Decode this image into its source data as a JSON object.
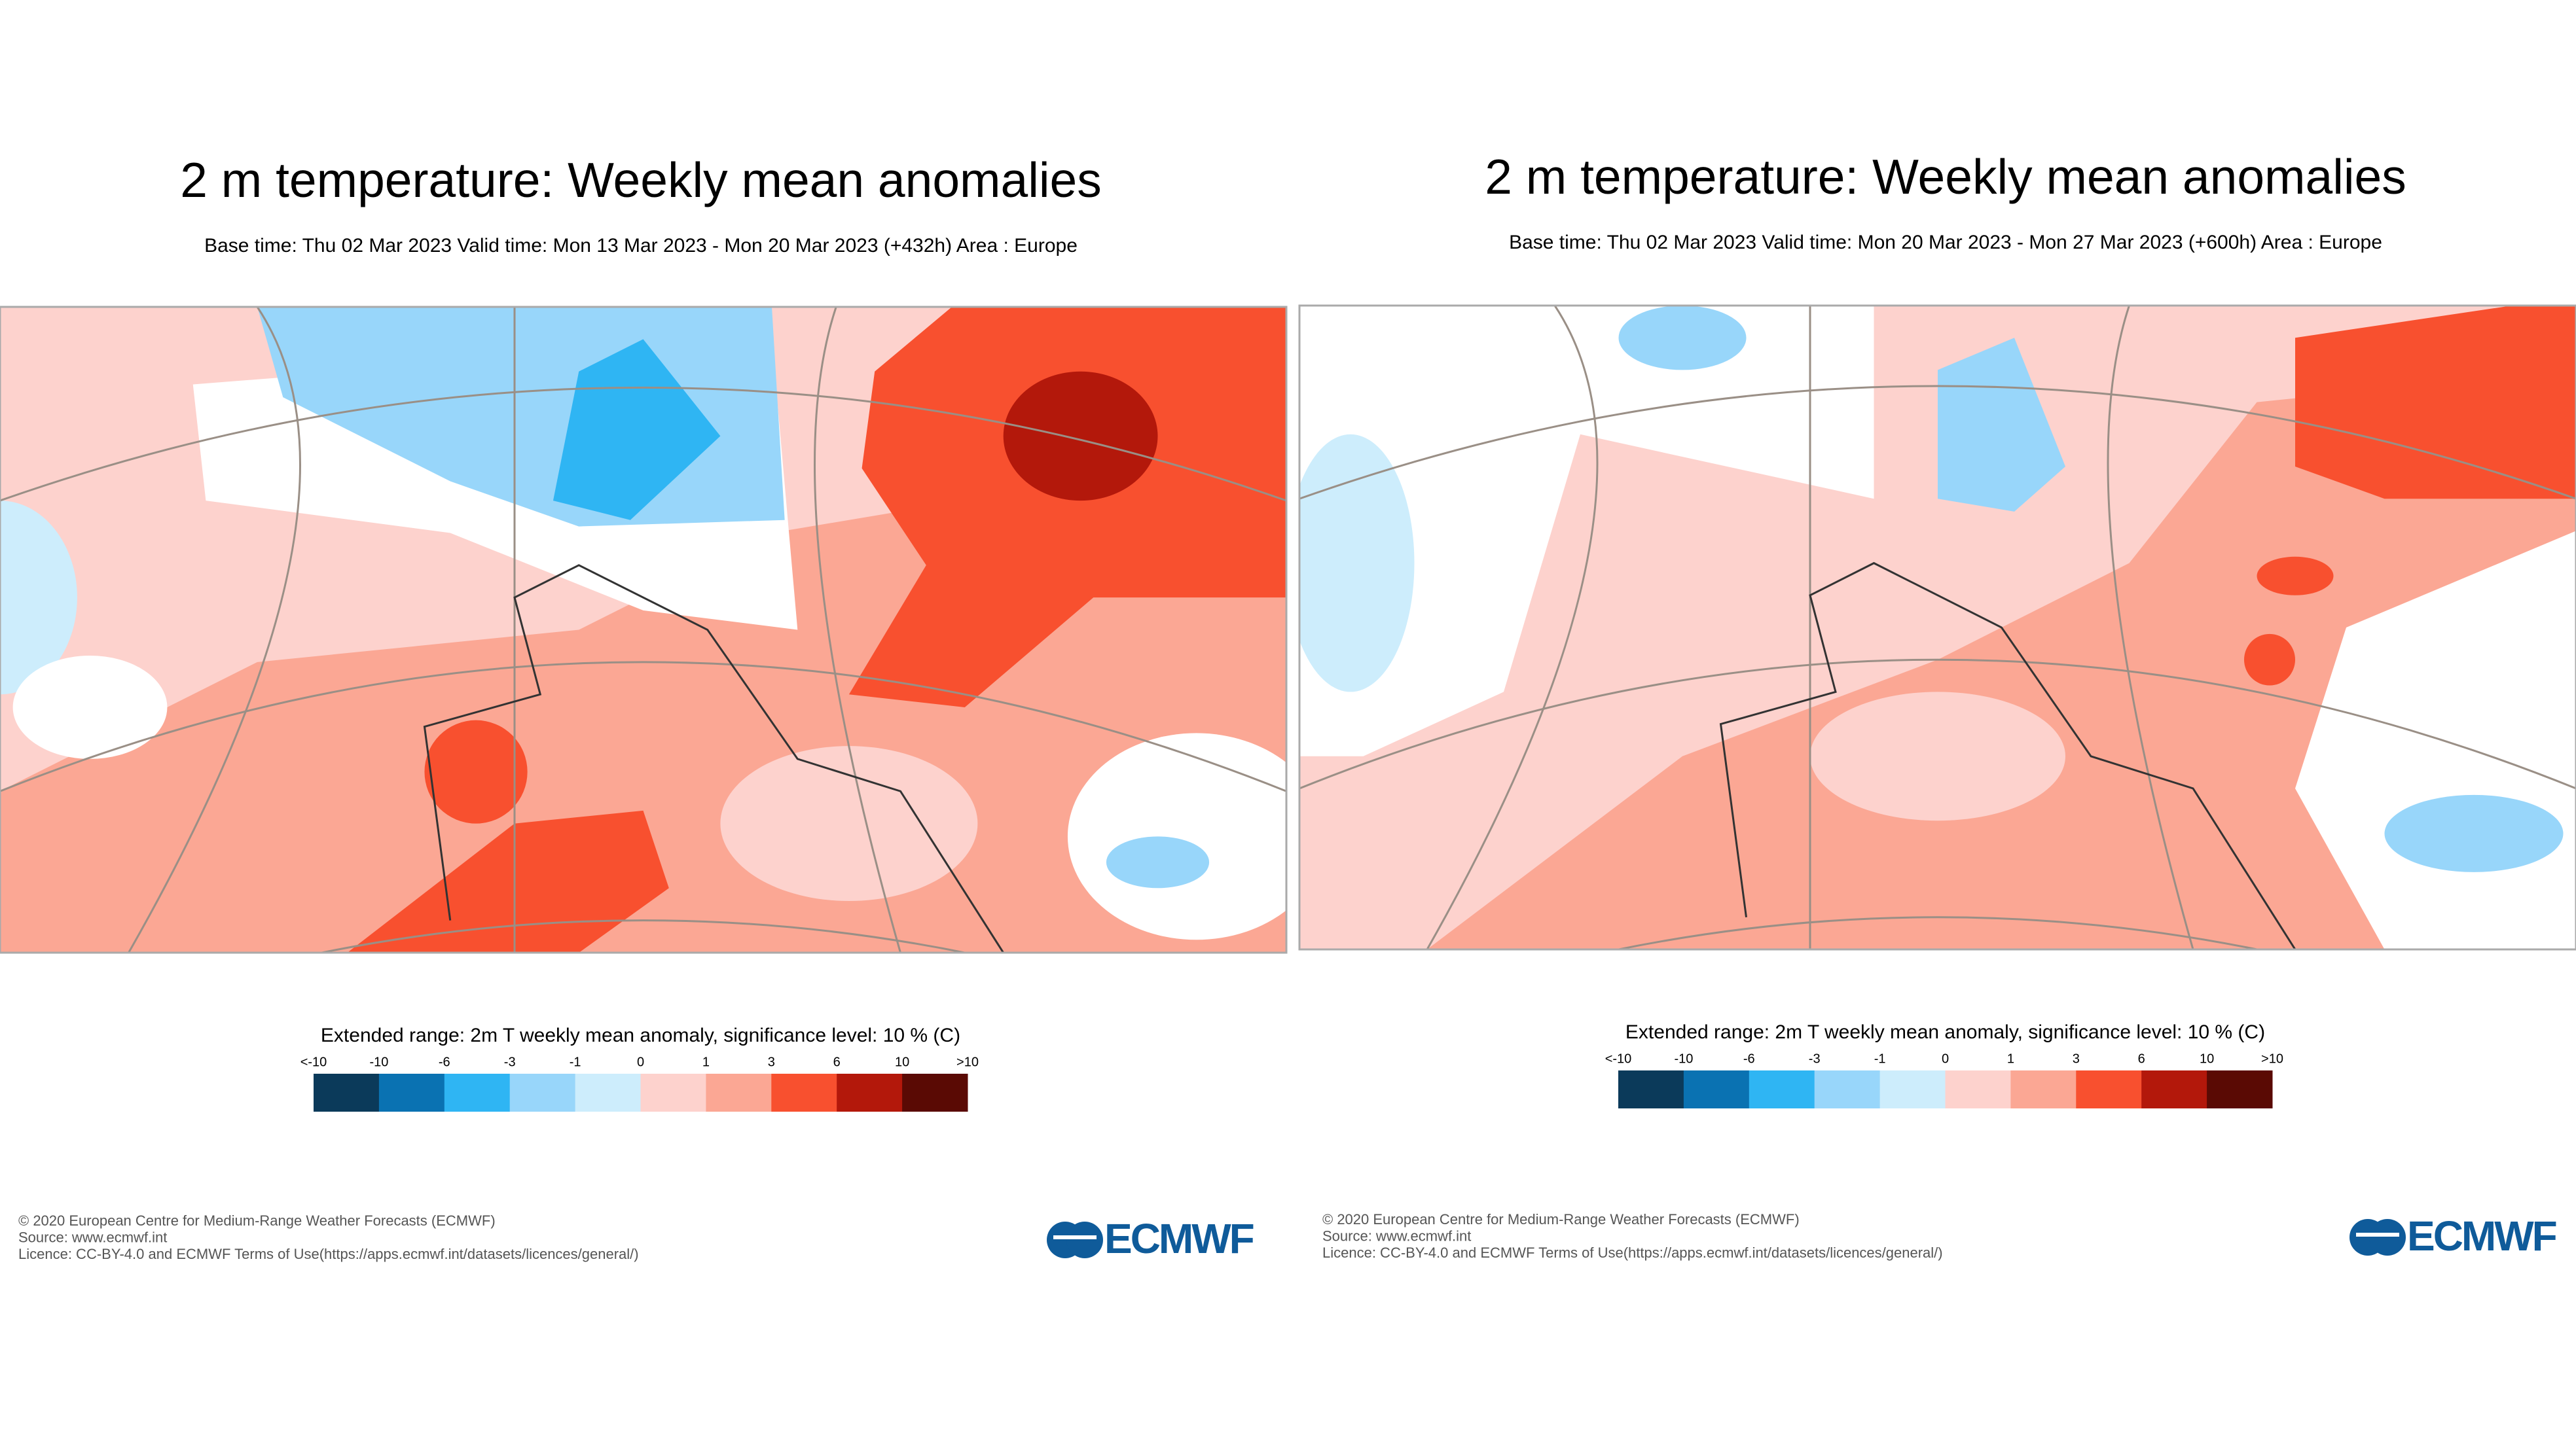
{
  "panels": [
    {
      "title": "2 m temperature: Weekly mean anomalies",
      "subtitle": "Base time: Thu 02 Mar 2023 Valid time: Mon 13 Mar 2023 - Mon 20 Mar 2023 (+432h) Area : Europe",
      "legend": {
        "title": "Extended range: 2m T weekly mean anomaly, significance level: 10 % (C)",
        "labels": [
          "<-10",
          "-10",
          "-6",
          "-3",
          "-1",
          "0",
          "1",
          "3",
          "6",
          "10",
          ">10"
        ],
        "colors": [
          "#0b3a5a",
          "#0a72b2",
          "#2fb5f3",
          "#98d6fa",
          "#cdedfc",
          "#fdd2cd",
          "#fba794",
          "#f8502f",
          "#b3180b",
          "#5a0a04"
        ]
      },
      "footer": [
        "© 2020 European Centre for Medium-Range Weather Forecasts (ECMWF)",
        "Source: www.ecmwf.int",
        "Licence: CC-BY-4.0 and ECMWF Terms of Use(https://apps.ecmwf.int/datasets/licences/general/)"
      ],
      "logo": "ECMWF"
    },
    {
      "title": "2 m temperature: Weekly mean anomalies",
      "subtitle": "Base time: Thu 02 Mar 2023 Valid time: Mon 20 Mar 2023 - Mon 27 Mar 2023 (+600h) Area : Europe",
      "legend": {
        "title": "Extended range: 2m T weekly mean anomaly, significance level: 10 % (C)",
        "labels": [
          "<-10",
          "-10",
          "-6",
          "-3",
          "-1",
          "0",
          "1",
          "3",
          "6",
          "10",
          ">10"
        ],
        "colors": [
          "#0b3a5a",
          "#0a72b2",
          "#2fb5f3",
          "#98d6fa",
          "#cdedfc",
          "#fdd2cd",
          "#fba794",
          "#f8502f",
          "#b3180b",
          "#5a0a04"
        ]
      },
      "footer": [
        "© 2020 European Centre for Medium-Range Weather Forecasts (ECMWF)",
        "Source: www.ecmwf.int",
        "Licence: CC-BY-4.0 and ECMWF Terms of Use(https://apps.ecmwf.int/datasets/licences/general/)"
      ],
      "logo": "ECMWF"
    }
  ]
}
